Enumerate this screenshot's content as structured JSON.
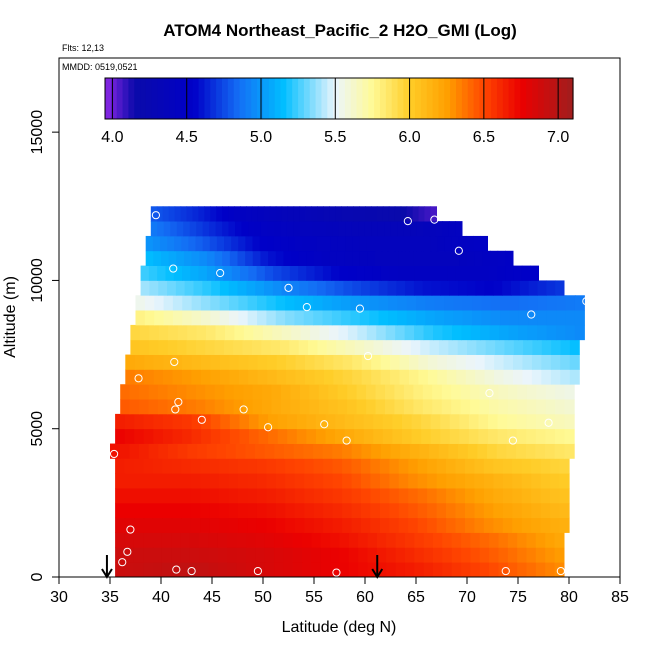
{
  "chart_data": {
    "type": "heatmap",
    "title": "ATOM4 Northeast_Pacific_2 H2O_GMI (Log)",
    "flights": "Flts: 12,13",
    "dates": "MMDD: 0519,0521",
    "xlabel": "Latitude (deg N)",
    "ylabel": "Altitude (m)",
    "xlim": [
      30,
      85
    ],
    "ylim": [
      0,
      17500
    ],
    "xticks": [
      "30",
      "35",
      "40",
      "45",
      "50",
      "55",
      "60",
      "65",
      "70",
      "75",
      "80",
      "85"
    ],
    "yticks": [
      "0",
      "5000",
      "10000",
      "15000"
    ],
    "colorbar": {
      "vmin": 3.95,
      "vmax": 7.1,
      "ticks": [
        "4.0",
        "4.5",
        "5.0",
        "5.5",
        "6.0",
        "6.5",
        "7.0"
      ]
    },
    "layer_thickness_m": 500,
    "layers": [
      {
        "alt": 0,
        "lat_min": 35.5,
        "lat_max": 79.5,
        "values": [
          6.9,
          6.95,
          6.85,
          6.75,
          6.65,
          6.5,
          6.3
        ]
      },
      {
        "alt": 500,
        "lat_min": 35.5,
        "lat_max": 79.5,
        "values": [
          6.9,
          6.9,
          6.85,
          6.75,
          6.6,
          6.45,
          6.25
        ]
      },
      {
        "alt": 1000,
        "lat_min": 35.5,
        "lat_max": 79.5,
        "values": [
          6.85,
          6.85,
          6.8,
          6.7,
          6.55,
          6.4,
          6.2
        ]
      },
      {
        "alt": 1500,
        "lat_min": 35.5,
        "lat_max": 80.0,
        "values": [
          6.8,
          6.8,
          6.75,
          6.65,
          6.5,
          6.3,
          6.15
        ]
      },
      {
        "alt": 2000,
        "lat_min": 35.5,
        "lat_max": 80.0,
        "values": [
          6.75,
          6.75,
          6.7,
          6.6,
          6.45,
          6.25,
          6.1
        ]
      },
      {
        "alt": 2500,
        "lat_min": 35.5,
        "lat_max": 80.0,
        "values": [
          6.7,
          6.7,
          6.65,
          6.55,
          6.4,
          6.2,
          6.05
        ]
      },
      {
        "alt": 3000,
        "lat_min": 35.5,
        "lat_max": 80.0,
        "values": [
          6.65,
          6.65,
          6.6,
          6.5,
          6.3,
          6.15,
          6.0
        ]
      },
      {
        "alt": 3500,
        "lat_min": 35.5,
        "lat_max": 80.0,
        "values": [
          6.65,
          6.6,
          6.55,
          6.45,
          6.25,
          6.05,
          5.95
        ]
      },
      {
        "alt": 4000,
        "lat_min": 35.0,
        "lat_max": 80.5,
        "values": [
          6.7,
          6.55,
          6.45,
          6.35,
          6.15,
          5.95,
          5.85
        ]
      },
      {
        "alt": 4500,
        "lat_min": 35.5,
        "lat_max": 80.5,
        "values": [
          6.75,
          6.6,
          6.4,
          6.2,
          6.0,
          5.85,
          5.75
        ]
      },
      {
        "alt": 5000,
        "lat_min": 35.5,
        "lat_max": 80.5,
        "values": [
          6.65,
          6.55,
          6.25,
          6.1,
          5.95,
          5.75,
          5.65
        ]
      },
      {
        "alt": 5500,
        "lat_min": 36.0,
        "lat_max": 80.5,
        "values": [
          6.45,
          6.35,
          6.2,
          6.05,
          5.85,
          5.7,
          5.6
        ]
      },
      {
        "alt": 6000,
        "lat_min": 36.0,
        "lat_max": 80.5,
        "values": [
          6.4,
          6.3,
          6.2,
          6.0,
          5.8,
          5.65,
          5.55
        ]
      },
      {
        "alt": 6500,
        "lat_min": 36.5,
        "lat_max": 81.0,
        "values": [
          6.35,
          6.25,
          6.1,
          5.95,
          5.75,
          5.55,
          5.4
        ]
      },
      {
        "alt": 7000,
        "lat_min": 36.5,
        "lat_max": 81.0,
        "values": [
          6.2,
          6.1,
          6.0,
          5.85,
          5.6,
          5.45,
          5.3
        ]
      },
      {
        "alt": 7500,
        "lat_min": 37.0,
        "lat_max": 81.0,
        "values": [
          6.05,
          5.95,
          5.85,
          5.65,
          5.45,
          5.3,
          5.15
        ]
      },
      {
        "alt": 8000,
        "lat_min": 37.0,
        "lat_max": 81.5,
        "values": [
          5.95,
          5.85,
          5.65,
          5.45,
          5.2,
          5.05,
          4.95
        ]
      },
      {
        "alt": 8500,
        "lat_min": 37.5,
        "lat_max": 81.5,
        "values": [
          5.8,
          5.6,
          5.35,
          5.2,
          5.05,
          4.95,
          4.95
        ]
      },
      {
        "alt": 9000,
        "lat_min": 37.5,
        "lat_max": 81.5,
        "values": [
          5.55,
          5.35,
          5.15,
          5.0,
          4.9,
          4.85,
          4.9
        ]
      },
      {
        "alt": 9500,
        "lat_min": 38.0,
        "lat_max": 79.5,
        "values": [
          5.4,
          5.2,
          4.95,
          4.75,
          4.6,
          4.55,
          4.7
        ]
      },
      {
        "alt": 10000,
        "lat_min": 38.0,
        "lat_max": 77.0,
        "values": [
          5.25,
          5.05,
          4.75,
          4.55,
          4.45,
          4.45,
          4.55
        ]
      },
      {
        "alt": 10500,
        "lat_min": 38.5,
        "lat_max": 74.5,
        "values": [
          5.15,
          4.95,
          4.6,
          4.45,
          4.4,
          4.4,
          4.5
        ]
      },
      {
        "alt": 11000,
        "lat_min": 38.5,
        "lat_max": 72.0,
        "values": [
          5.0,
          4.8,
          4.55,
          4.45,
          4.4,
          4.4,
          4.5
        ]
      },
      {
        "alt": 11500,
        "lat_min": 39.0,
        "lat_max": 69.5,
        "values": [
          4.9,
          4.7,
          4.5,
          4.4,
          4.35,
          4.35,
          4.45
        ]
      },
      {
        "alt": 12000,
        "lat_min": 39.0,
        "lat_max": 67.0,
        "values": [
          4.8,
          4.65,
          4.45,
          4.35,
          4.25,
          4.2,
          4.05
        ]
      }
    ],
    "sample_points": [
      {
        "lat": 39.5,
        "alt": 12200
      },
      {
        "lat": 64.2,
        "alt": 12000
      },
      {
        "lat": 66.8,
        "alt": 12050
      },
      {
        "lat": 69.2,
        "alt": 11000
      },
      {
        "lat": 41.2,
        "alt": 10400
      },
      {
        "lat": 45.8,
        "alt": 10250
      },
      {
        "lat": 52.5,
        "alt": 9750
      },
      {
        "lat": 54.3,
        "alt": 9100
      },
      {
        "lat": 59.5,
        "alt": 9050
      },
      {
        "lat": 76.3,
        "alt": 8850
      },
      {
        "lat": 81.7,
        "alt": 9300
      },
      {
        "lat": 60.3,
        "alt": 7450
      },
      {
        "lat": 41.3,
        "alt": 7250
      },
      {
        "lat": 37.8,
        "alt": 6700
      },
      {
        "lat": 72.2,
        "alt": 6200
      },
      {
        "lat": 41.7,
        "alt": 5900
      },
      {
        "lat": 41.4,
        "alt": 5650
      },
      {
        "lat": 48.1,
        "alt": 5650
      },
      {
        "lat": 44.0,
        "alt": 5300
      },
      {
        "lat": 56.0,
        "alt": 5150
      },
      {
        "lat": 50.5,
        "alt": 5050
      },
      {
        "lat": 78.0,
        "alt": 5200
      },
      {
        "lat": 58.2,
        "alt": 4600
      },
      {
        "lat": 74.5,
        "alt": 4600
      },
      {
        "lat": 35.4,
        "alt": 4150
      },
      {
        "lat": 37.0,
        "alt": 1600
      },
      {
        "lat": 36.7,
        "alt": 850
      },
      {
        "lat": 36.2,
        "alt": 500
      },
      {
        "lat": 41.5,
        "alt": 250
      },
      {
        "lat": 43.0,
        "alt": 200
      },
      {
        "lat": 49.5,
        "alt": 200
      },
      {
        "lat": 57.2,
        "alt": 150
      },
      {
        "lat": 73.8,
        "alt": 200
      },
      {
        "lat": 79.2,
        "alt": 200
      }
    ],
    "arrows": [
      {
        "lat": 34.7
      },
      {
        "lat": 61.2
      }
    ]
  }
}
